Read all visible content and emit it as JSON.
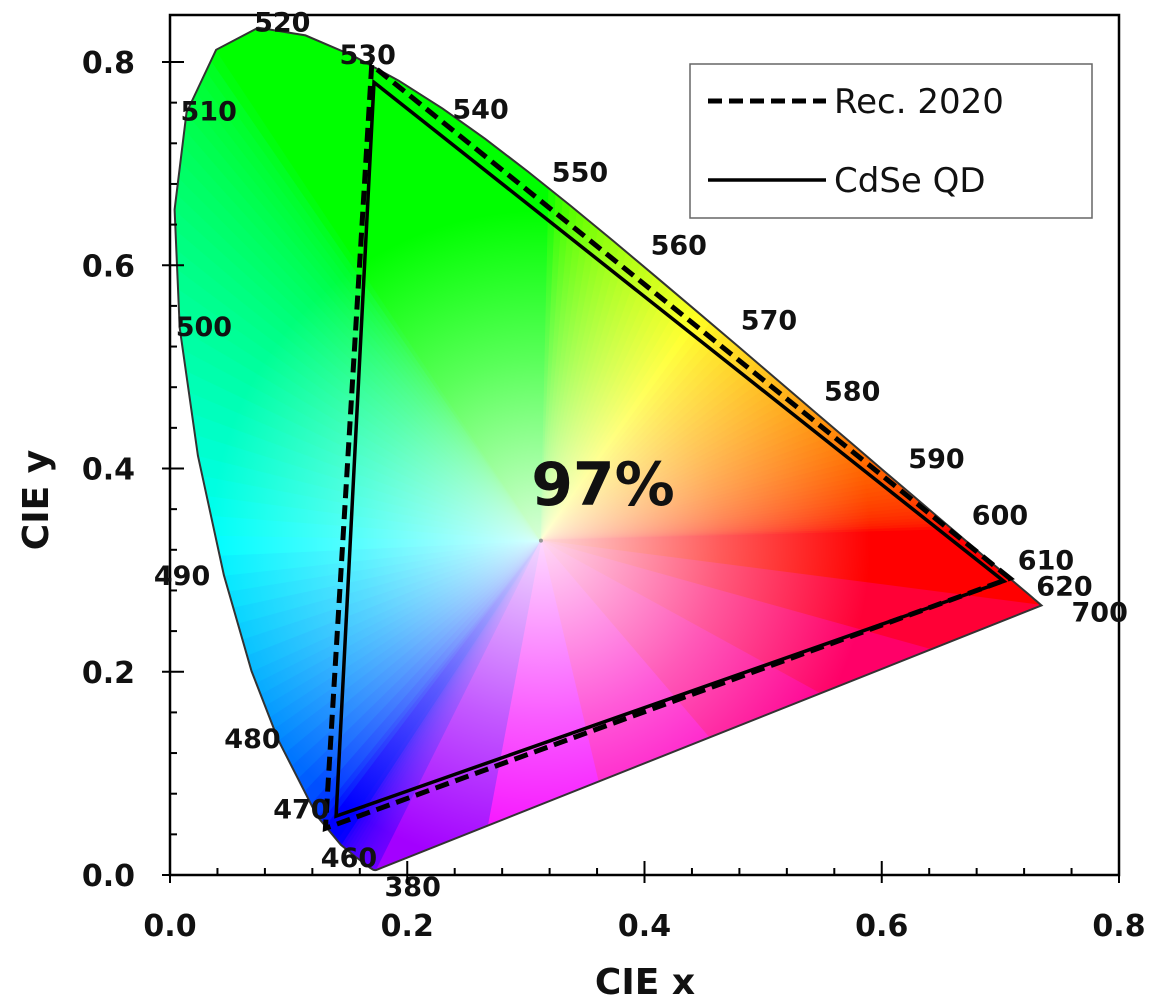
{
  "chart_data": {
    "type": "scatter",
    "title": "",
    "xlabel": "CIE x",
    "ylabel": "CIE y",
    "xlim": [
      0.0,
      0.8
    ],
    "ylim": [
      0.0,
      0.8
    ],
    "x_ticks": [
      "0.0",
      "0.2",
      "0.4",
      "0.6",
      "0.8"
    ],
    "y_ticks": [
      "0.0",
      "0.2",
      "0.4",
      "0.6",
      "0.8"
    ],
    "grid": false,
    "legend_position": "top-right",
    "annotation": "97%",
    "white_point": [
      0.3127,
      0.329
    ],
    "spectral_locus": [
      [
        0.1741,
        0.005
      ],
      [
        0.1738,
        0.0049
      ],
      [
        0.1733,
        0.0048
      ],
      [
        0.1726,
        0.0048
      ],
      [
        0.1714,
        0.0051
      ],
      [
        0.1689,
        0.0069
      ],
      [
        0.1644,
        0.0109
      ],
      [
        0.1566,
        0.0177
      ],
      [
        0.144,
        0.0297
      ],
      [
        0.1241,
        0.0578
      ],
      [
        0.0913,
        0.1327
      ],
      [
        0.0687,
        0.2007
      ],
      [
        0.0454,
        0.295
      ],
      [
        0.0235,
        0.4127
      ],
      [
        0.0082,
        0.5384
      ],
      [
        0.0039,
        0.6548
      ],
      [
        0.0139,
        0.7502
      ],
      [
        0.0389,
        0.812
      ],
      [
        0.0743,
        0.8338
      ],
      [
        0.1142,
        0.8262
      ],
      [
        0.1547,
        0.8059
      ],
      [
        0.1929,
        0.7816
      ],
      [
        0.2296,
        0.7543
      ],
      [
        0.2658,
        0.7243
      ],
      [
        0.3016,
        0.6923
      ],
      [
        0.3373,
        0.6589
      ],
      [
        0.3731,
        0.6245
      ],
      [
        0.4087,
        0.5896
      ],
      [
        0.4441,
        0.5547
      ],
      [
        0.4788,
        0.5202
      ],
      [
        0.5125,
        0.4866
      ],
      [
        0.5448,
        0.4544
      ],
      [
        0.5752,
        0.4242
      ],
      [
        0.6029,
        0.3965
      ],
      [
        0.627,
        0.3725
      ],
      [
        0.6482,
        0.3514
      ],
      [
        0.6658,
        0.334
      ],
      [
        0.6801,
        0.3197
      ],
      [
        0.6915,
        0.3083
      ],
      [
        0.7006,
        0.2993
      ],
      [
        0.7079,
        0.292
      ],
      [
        0.714,
        0.2859
      ],
      [
        0.719,
        0.2809
      ],
      [
        0.723,
        0.277
      ],
      [
        0.726,
        0.274
      ],
      [
        0.7283,
        0.2717
      ],
      [
        0.73,
        0.27
      ],
      [
        0.7347,
        0.2653
      ]
    ],
    "wavelength_labels": [
      {
        "text": "380",
        "x": 0.1741,
        "y": 0.005
      },
      {
        "text": "460",
        "x": 0.144,
        "y": 0.0297
      },
      {
        "text": "470",
        "x": 0.1241,
        "y": 0.0578
      },
      {
        "text": "480",
        "x": 0.0913,
        "y": 0.1327
      },
      {
        "text": "490",
        "x": 0.0454,
        "y": 0.295
      },
      {
        "text": "500",
        "x": 0.0082,
        "y": 0.5384
      },
      {
        "text": "510",
        "x": 0.0139,
        "y": 0.7502
      },
      {
        "text": "520",
        "x": 0.0743,
        "y": 0.8338
      },
      {
        "text": "530",
        "x": 0.1547,
        "y": 0.8059
      },
      {
        "text": "540",
        "x": 0.2296,
        "y": 0.7543
      },
      {
        "text": "550",
        "x": 0.3016,
        "y": 0.6923
      },
      {
        "text": "560",
        "x": 0.3731,
        "y": 0.6245
      },
      {
        "text": "570",
        "x": 0.4441,
        "y": 0.5547
      },
      {
        "text": "580",
        "x": 0.5125,
        "y": 0.4866
      },
      {
        "text": "590",
        "x": 0.5752,
        "y": 0.4242
      },
      {
        "text": "600",
        "x": 0.627,
        "y": 0.3725
      },
      {
        "text": "610",
        "x": 0.6658,
        "y": 0.334
      },
      {
        "text": "620",
        "x": 0.6915,
        "y": 0.3083
      },
      {
        "text": "700",
        "x": 0.7347,
        "y": 0.2653
      }
    ],
    "series": [
      {
        "name": "Rec. 2020",
        "style": "dashed",
        "color": "#000000",
        "points": [
          [
            0.708,
            0.292
          ],
          [
            0.17,
            0.797
          ],
          [
            0.131,
            0.046
          ]
        ]
      },
      {
        "name": "CdSe QD",
        "style": "solid",
        "color": "#000000",
        "points": [
          [
            0.703,
            0.289
          ],
          [
            0.172,
            0.78
          ],
          [
            0.14,
            0.058
          ]
        ]
      }
    ]
  }
}
